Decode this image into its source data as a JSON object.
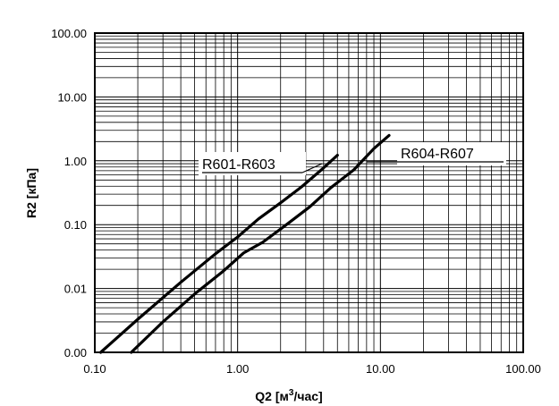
{
  "chart_data": {
    "type": "line",
    "xlabel": "Q2 [м",
    "xlabel_sup": "3",
    "xlabel_tail": "/час]",
    "ylabel": "R2 [кПа]",
    "x_scale": "log",
    "y_scale": "log",
    "xlim": [
      0.1,
      100
    ],
    "ylim": [
      0.001,
      100
    ],
    "grid": true,
    "x_ticks": [
      {
        "value": 0.1,
        "label": "0.10"
      },
      {
        "value": 1,
        "label": "1.00"
      },
      {
        "value": 10,
        "label": "10.00"
      },
      {
        "value": 100,
        "label": "100.00"
      }
    ],
    "y_ticks": [
      {
        "value": 0.001,
        "label": "0.00"
      },
      {
        "value": 0.01,
        "label": "0.01"
      },
      {
        "value": 0.1,
        "label": "0.10"
      },
      {
        "value": 1,
        "label": "1.00"
      },
      {
        "value": 10,
        "label": "10.00"
      },
      {
        "value": 100,
        "label": "100.00"
      }
    ],
    "series": [
      {
        "name": "R601-R603",
        "x": [
          0.11,
          0.2,
          0.4,
          0.7,
          1.0,
          1.4,
          2.0,
          2.8,
          3.8,
          5.0
        ],
        "y": [
          0.001,
          0.0033,
          0.0125,
          0.035,
          0.064,
          0.123,
          0.22,
          0.39,
          0.7,
          1.22
        ]
      },
      {
        "name": "R604-R607",
        "x": [
          0.18,
          0.3,
          0.5,
          0.8,
          1.1,
          1.5,
          2.2,
          3.2,
          4.5,
          6.5,
          9.0,
          11.5
        ],
        "y": [
          0.001,
          0.003,
          0.0082,
          0.019,
          0.036,
          0.053,
          0.1,
          0.19,
          0.38,
          0.72,
          1.55,
          2.5
        ]
      }
    ],
    "annotations": [
      {
        "series": "R601-R603",
        "text": "R601-R603"
      },
      {
        "series": "R604-R607",
        "text": "R604-R607"
      }
    ]
  }
}
